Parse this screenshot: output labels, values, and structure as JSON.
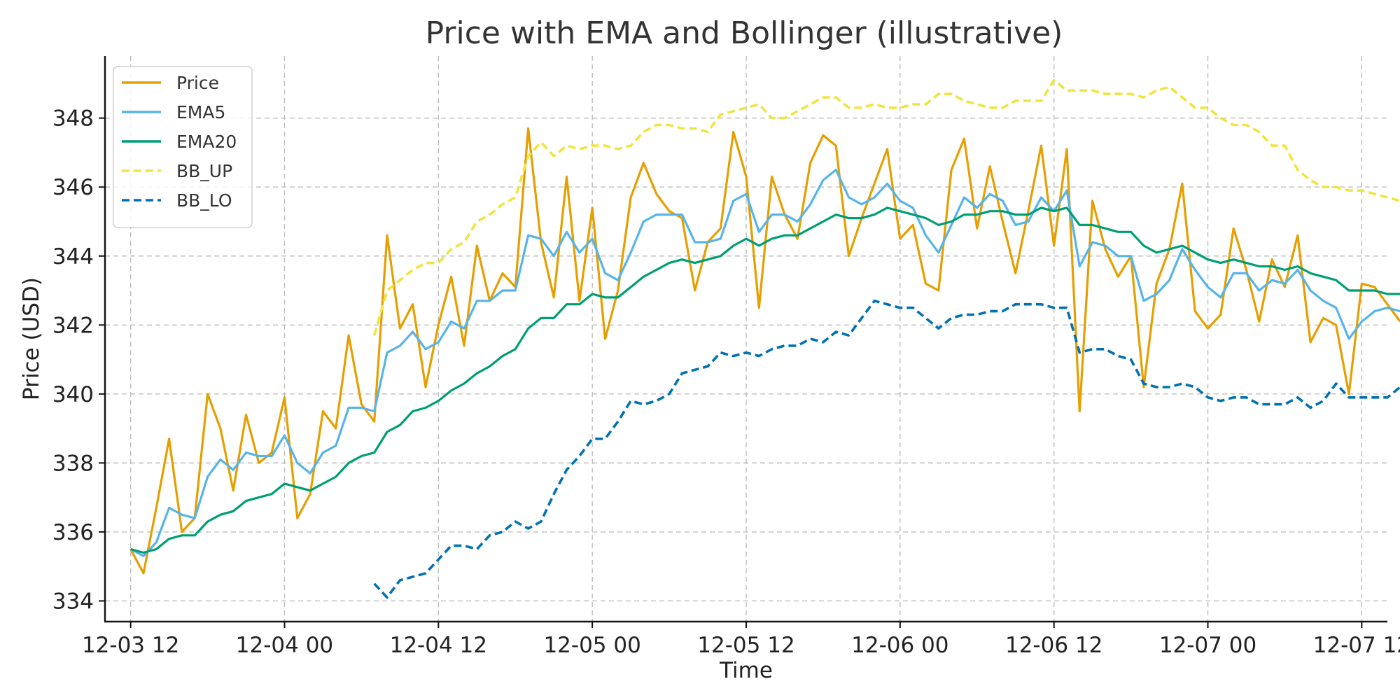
{
  "chart_data": {
    "type": "line",
    "title": "Price with EMA and Bollinger (illustrative)",
    "xlabel": "Time",
    "ylabel": "Price (USD)",
    "x_tick_labels": [
      "12-03 12",
      "12-04 00",
      "12-04 12",
      "12-05 00",
      "12-05 12",
      "12-06 00",
      "12-06 12",
      "12-07 00",
      "12-07 12"
    ],
    "y_ticks": [
      334,
      336,
      338,
      340,
      342,
      344,
      346,
      348
    ],
    "ylim": [
      333.4,
      349.8
    ],
    "xlim_hours": [
      -2,
      98
    ],
    "x_step_hours": 1,
    "grid": true,
    "legend_position": "upper-left",
    "series": [
      {
        "name": "Price",
        "color": "#E69F00",
        "dashed": false,
        "start_index": 0,
        "values": [
          335.5,
          334.8,
          336.7,
          338.7,
          336.0,
          336.4,
          340.0,
          339.0,
          337.2,
          339.4,
          338.0,
          338.3,
          339.9,
          336.4,
          337.1,
          339.5,
          339.0,
          341.7,
          339.7,
          339.2,
          344.6,
          341.9,
          342.6,
          340.2,
          342.0,
          343.4,
          341.4,
          344.3,
          342.7,
          343.5,
          343.1,
          347.7,
          344.4,
          342.8,
          346.3,
          342.7,
          345.4,
          341.6,
          343.0,
          345.7,
          346.7,
          345.8,
          345.3,
          345.1,
          343.0,
          344.4,
          344.8,
          347.6,
          346.3,
          342.5,
          346.3,
          345.2,
          344.5,
          346.7,
          347.5,
          347.2,
          344.0,
          345.1,
          346.1,
          347.1,
          344.5,
          344.9,
          343.2,
          343.0,
          346.5,
          347.4,
          344.8,
          346.6,
          345.0,
          343.5,
          345.3,
          347.2,
          344.3,
          347.1,
          339.5,
          345.6,
          344.2,
          343.4,
          344.0,
          340.2,
          343.2,
          344.2,
          346.1,
          342.4,
          341.9,
          342.3,
          344.8,
          343.6,
          342.1,
          343.9,
          343.1,
          344.6,
          341.5,
          342.2,
          342.0,
          340.0,
          343.2,
          343.1,
          342.6,
          342.1
        ]
      },
      {
        "name": "EMA5",
        "color": "#56B4E9",
        "dashed": false,
        "start_index": 0,
        "values": [
          335.5,
          335.3,
          335.7,
          336.7,
          336.5,
          336.4,
          337.6,
          338.1,
          337.8,
          338.3,
          338.2,
          338.2,
          338.8,
          338.0,
          337.7,
          338.3,
          338.5,
          339.6,
          339.6,
          339.5,
          341.2,
          341.4,
          341.8,
          341.3,
          341.5,
          342.1,
          341.9,
          342.7,
          342.7,
          343.0,
          343.0,
          344.6,
          344.5,
          344.0,
          344.7,
          344.1,
          344.5,
          343.5,
          343.3,
          344.1,
          345.0,
          345.2,
          345.2,
          345.2,
          344.4,
          344.4,
          344.5,
          345.6,
          345.8,
          344.7,
          345.2,
          345.2,
          345.0,
          345.5,
          346.2,
          346.5,
          345.7,
          345.5,
          345.7,
          346.1,
          345.6,
          345.4,
          344.6,
          344.1,
          344.9,
          345.7,
          345.4,
          345.8,
          345.6,
          344.9,
          345.0,
          345.7,
          345.3,
          345.9,
          343.7,
          344.4,
          344.3,
          344.0,
          344.0,
          342.7,
          342.9,
          343.3,
          344.2,
          343.6,
          343.1,
          342.8,
          343.5,
          343.5,
          343.0,
          343.3,
          343.2,
          343.6,
          343.0,
          342.7,
          342.5,
          341.6,
          342.1,
          342.4,
          342.5,
          342.4
        ]
      },
      {
        "name": "EMA20",
        "color": "#009E73",
        "dashed": false,
        "start_index": 0,
        "values": [
          335.5,
          335.4,
          335.5,
          335.8,
          335.9,
          335.9,
          336.3,
          336.5,
          336.6,
          336.9,
          337.0,
          337.1,
          337.4,
          337.3,
          337.2,
          337.4,
          337.6,
          338.0,
          338.2,
          338.3,
          338.9,
          339.1,
          339.5,
          339.6,
          339.8,
          340.1,
          340.3,
          340.6,
          340.8,
          341.1,
          341.3,
          341.9,
          342.2,
          342.2,
          342.6,
          342.6,
          342.9,
          342.8,
          342.8,
          343.1,
          343.4,
          343.6,
          343.8,
          343.9,
          343.8,
          343.9,
          344.0,
          344.3,
          344.5,
          344.3,
          344.5,
          344.6,
          344.6,
          344.8,
          345.0,
          345.2,
          345.1,
          345.1,
          345.2,
          345.4,
          345.3,
          345.2,
          345.1,
          344.9,
          345.0,
          345.2,
          345.2,
          345.3,
          345.3,
          345.2,
          345.2,
          345.4,
          345.3,
          345.4,
          344.9,
          344.9,
          344.8,
          344.7,
          344.7,
          344.3,
          344.1,
          344.2,
          344.3,
          344.1,
          343.9,
          343.8,
          343.9,
          343.8,
          343.7,
          343.7,
          343.6,
          343.7,
          343.5,
          343.4,
          343.3,
          343.0,
          343.0,
          343.0,
          342.9,
          342.9
        ]
      },
      {
        "name": "BB_UP",
        "color": "#F0E442",
        "dashed": true,
        "start_index": 19,
        "values": [
          341.7,
          343.0,
          343.3,
          343.6,
          343.8,
          343.8,
          344.2,
          344.4,
          345.0,
          345.2,
          345.5,
          345.7,
          346.9,
          347.3,
          346.9,
          347.2,
          347.1,
          347.2,
          347.2,
          347.1,
          347.2,
          347.6,
          347.8,
          347.8,
          347.7,
          347.7,
          347.6,
          348.1,
          348.2,
          348.3,
          348.4,
          348.0,
          348.0,
          348.2,
          348.4,
          348.6,
          348.6,
          348.3,
          348.3,
          348.4,
          348.3,
          348.3,
          348.4,
          348.4,
          348.7,
          348.7,
          348.5,
          348.4,
          348.3,
          348.3,
          348.5,
          348.5,
          348.5,
          349.1,
          348.8,
          348.8,
          348.8,
          348.7,
          348.7,
          348.7,
          348.6,
          348.8,
          348.9,
          348.6,
          348.3,
          348.3,
          348.0,
          347.8,
          347.8,
          347.6,
          347.2,
          347.2,
          346.5,
          346.2,
          346.0,
          346.0,
          345.9,
          345.9,
          345.8,
          345.7,
          345.6
        ]
      },
      {
        "name": "BB_LO",
        "color": "#0072B2",
        "dashed": true,
        "start_index": 19,
        "values": [
          334.5,
          334.1,
          334.6,
          334.7,
          334.8,
          335.2,
          335.6,
          335.6,
          335.5,
          335.9,
          336.0,
          336.3,
          336.1,
          336.3,
          337.1,
          337.8,
          338.2,
          338.7,
          338.7,
          339.2,
          339.8,
          339.7,
          339.8,
          340.0,
          340.6,
          340.7,
          340.8,
          341.2,
          341.1,
          341.2,
          341.1,
          341.3,
          341.4,
          341.4,
          341.6,
          341.5,
          341.8,
          341.7,
          342.2,
          342.7,
          342.6,
          342.5,
          342.5,
          342.2,
          341.9,
          342.2,
          342.3,
          342.3,
          342.4,
          342.4,
          342.6,
          342.6,
          342.6,
          342.5,
          342.5,
          341.2,
          341.3,
          341.3,
          341.1,
          341.0,
          340.3,
          340.2,
          340.2,
          340.3,
          340.2,
          339.9,
          339.8,
          339.9,
          339.9,
          339.7,
          339.7,
          339.7,
          339.9,
          339.6,
          339.8,
          340.3,
          339.9,
          339.9,
          339.9,
          339.9,
          340.2
        ]
      }
    ]
  }
}
